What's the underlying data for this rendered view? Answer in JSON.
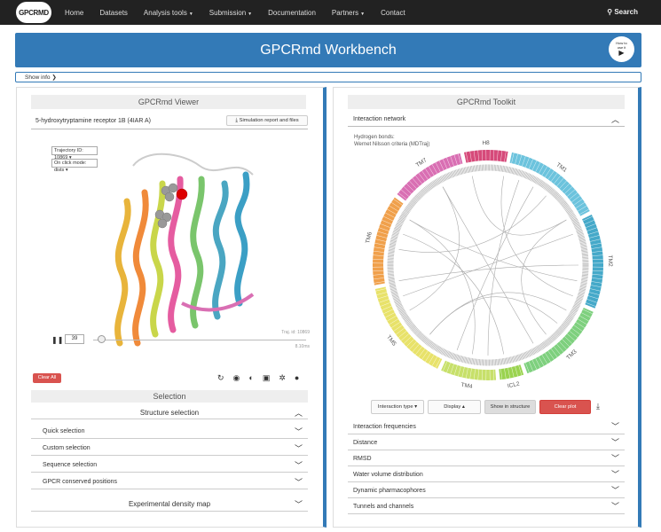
{
  "nav": {
    "logo_a": "GPCR",
    "logo_b": "MD",
    "items": [
      "Home",
      "Datasets",
      "Analysis tools",
      "Submission",
      "Documentation",
      "Partners",
      "Contact"
    ],
    "search": "Search"
  },
  "banner": {
    "title": "GPCRmd Workbench",
    "howto_line1": "How to",
    "howto_line2": "use it"
  },
  "showinfo": "Show info",
  "viewer": {
    "title": "GPCRmd Viewer",
    "protein": "5-hydroxytryptamine receptor 1B (4IAR A)",
    "report_button": "Simulation report and files",
    "trajectory_select": "Trajectory ID: 10869",
    "click_mode_select": "On click mode: dists",
    "frame_value": "39",
    "traj_id_label": "Traj. id: 10869",
    "time_label": "8.10ms",
    "clear_all": "Clear All"
  },
  "selection": {
    "title": "Selection",
    "structure_selection": "Structure selection",
    "rows": [
      "Quick selection",
      "Custom selection",
      "Sequence selection",
      "GPCR conserved positions"
    ],
    "experimental": "Experimental density map"
  },
  "toolkit": {
    "title": "GPCRmd Toolkit",
    "interaction_network": "Interaction network",
    "caption_line1": "Hydrogen bonds:",
    "caption_line2": "Wernet Nilsson criteria (MDTraj)",
    "segments": [
      "H8",
      "TM1",
      "TM2",
      "TM3",
      "ICL2",
      "TM4",
      "TM5",
      "TM6",
      "TM7"
    ],
    "buttons": {
      "interaction_type": "Interaction type",
      "display": "Display",
      "show_in_structure": "Show in structure",
      "clear_plot": "Clear plot"
    },
    "rows": [
      "Interaction frequencies",
      "Distance",
      "RMSD",
      "Water volume distribution",
      "Dynamic pharmacophores",
      "Tunnels and channels"
    ]
  },
  "colors": {
    "accent": "#337ab7",
    "danger": "#d9534f",
    "tm1": "#6cc3dd",
    "tm2": "#45a9c9",
    "tm3": "#7ed07e",
    "icl2": "#9ad34f",
    "tm4": "#c7e06a",
    "tm5": "#e8e26a",
    "tm6": "#f0a04b",
    "tm7": "#d96fb3",
    "h8": "#d64a7a"
  }
}
